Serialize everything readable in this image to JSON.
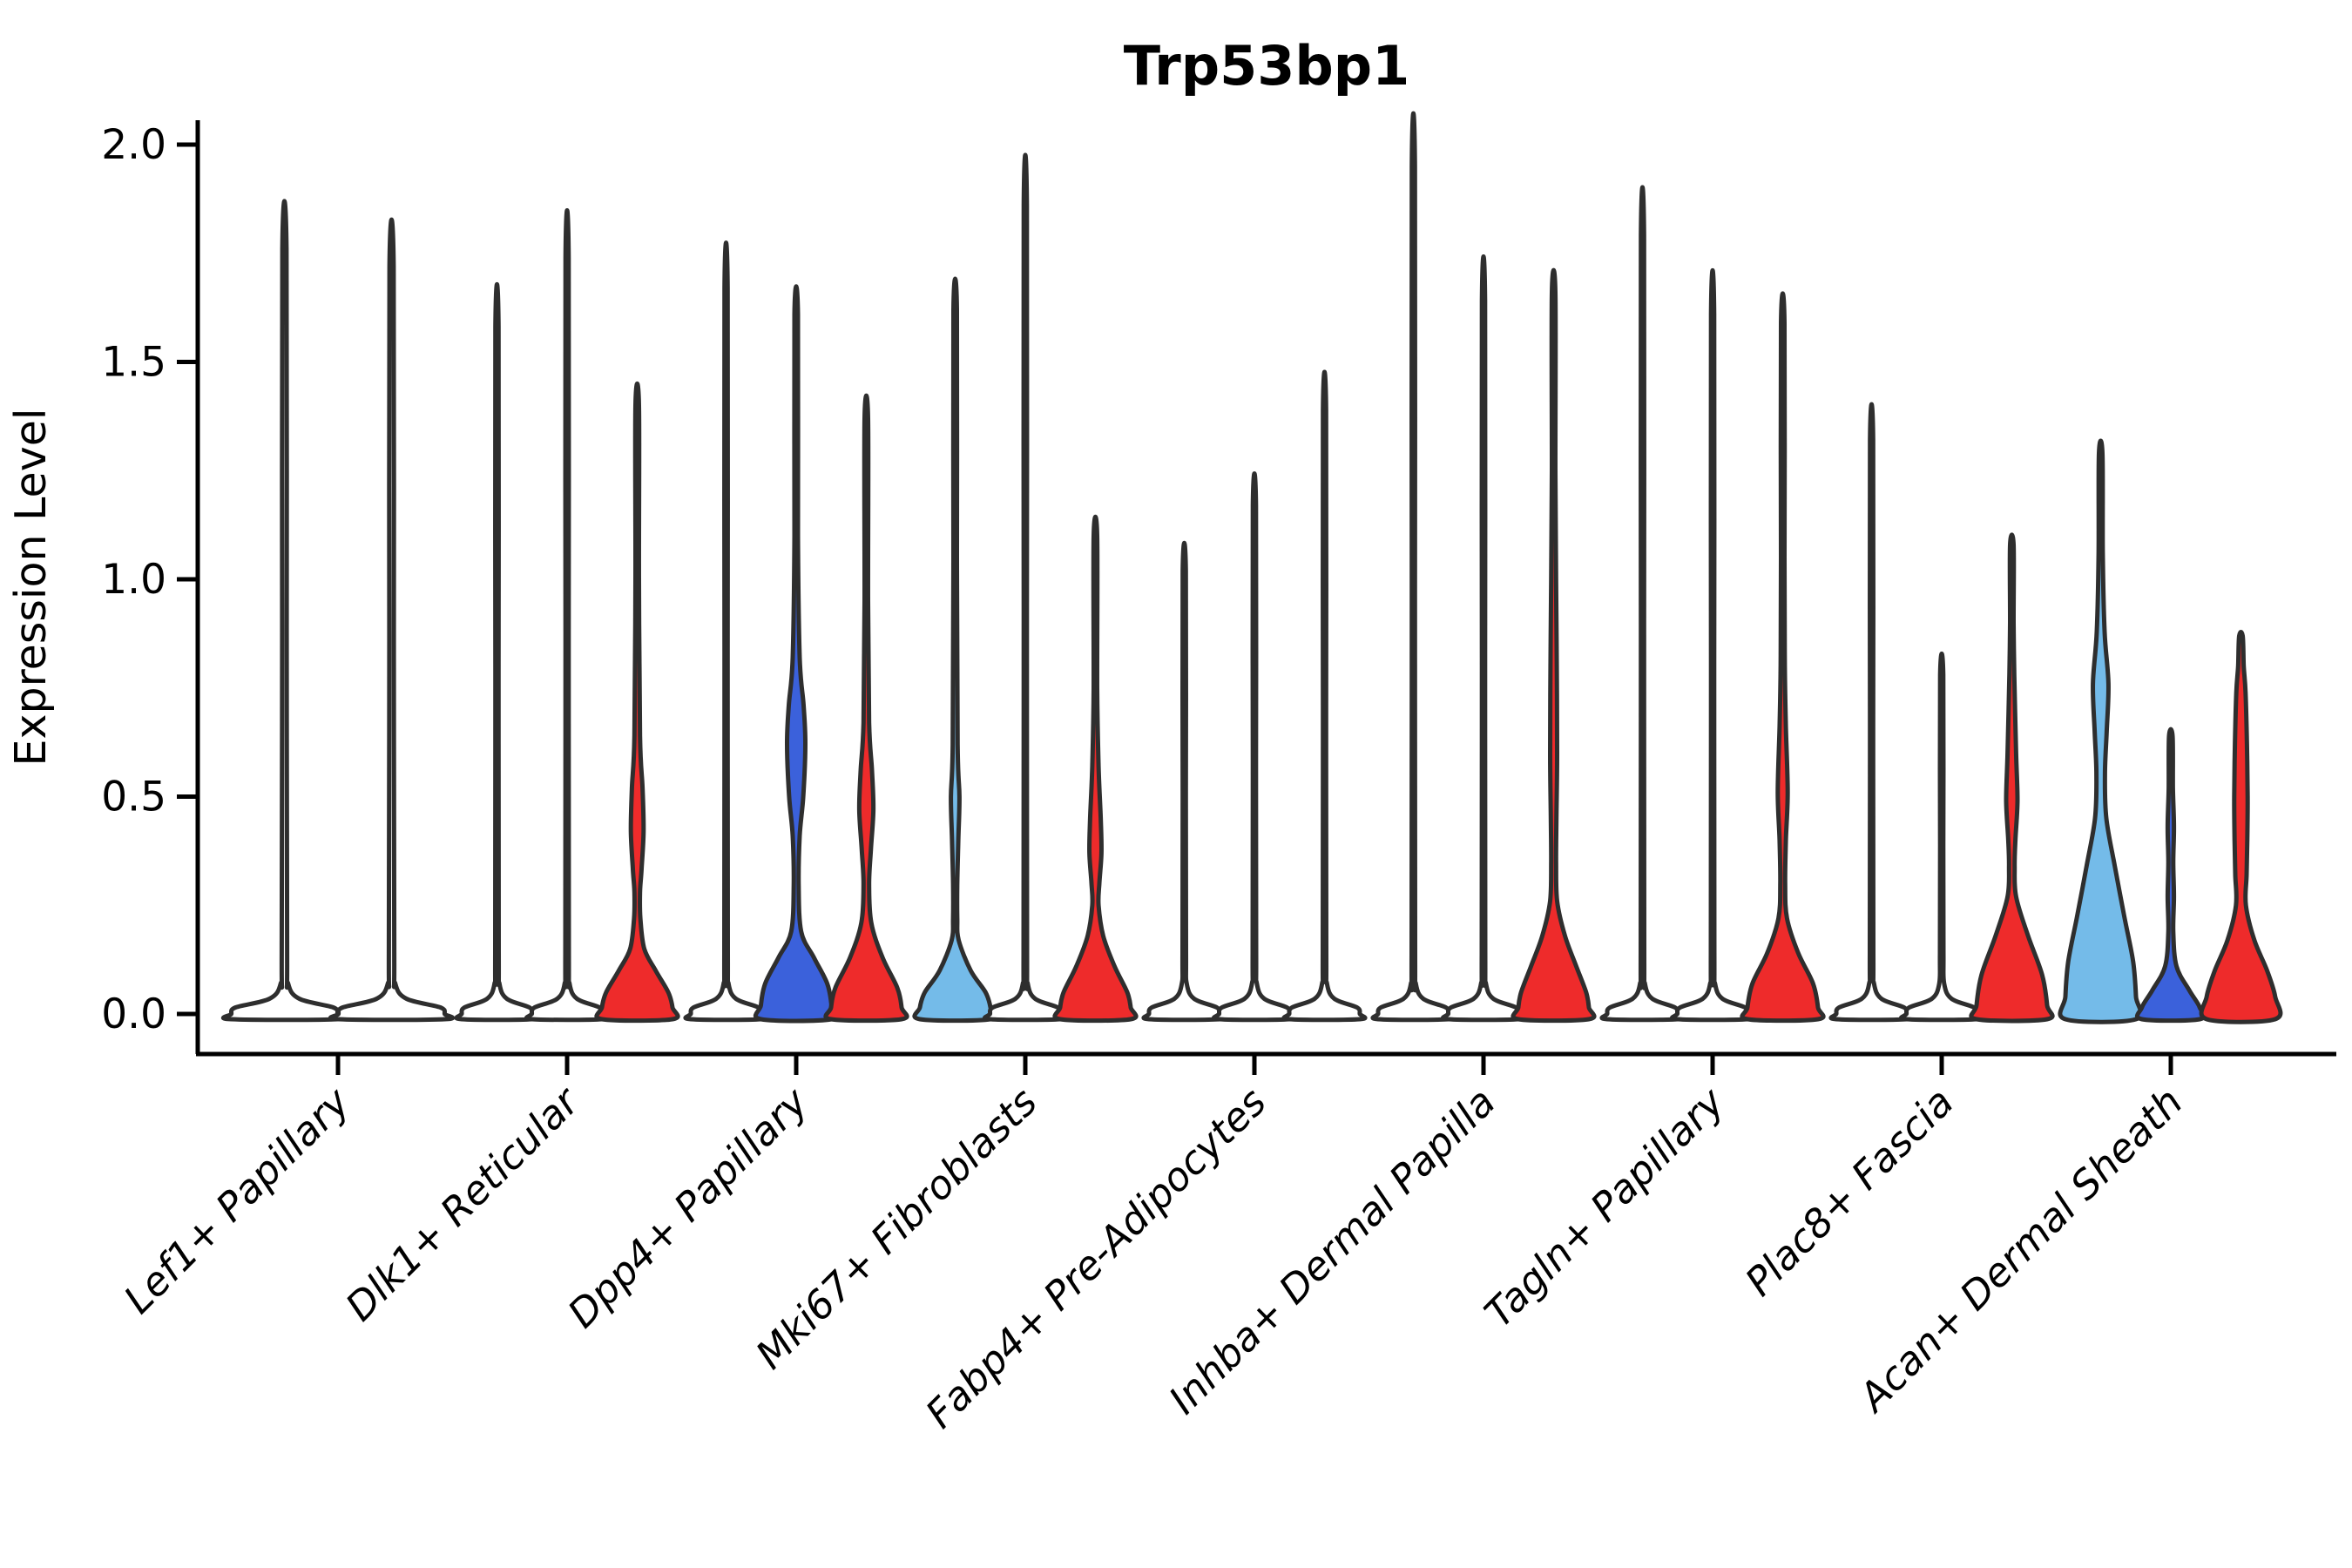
{
  "title": "Trp53bp1",
  "y_axis": {
    "label": "Expression Level",
    "tick_labels": [
      "0.0",
      "0.5",
      "1.0",
      "1.5",
      "2.0"
    ]
  },
  "x_axis": {
    "categories": [
      "Lef1+ Papillary",
      "Dlk1+ Reticular",
      "Dpp4+ Papillary",
      "Mki67+ Fibroblasts",
      "Fabp4+ Pre-Adipocytes",
      "Inhba+ Dermal Papilla",
      "Tagln+ Papillary",
      "Plac8+ Fascia",
      "Acan+ Dermal Sheath"
    ]
  },
  "colors": {
    "background": "#FFFFFF",
    "outline": "#2E2E2E",
    "text": "#000000",
    "red": "#EE2B2B",
    "blue": "#3B61DB",
    "light_blue": "#74BBE9",
    "none": "#FFFFFF"
  },
  "chart_data": {
    "type": "violin",
    "title": "Trp53bp1",
    "xlabel": "",
    "ylabel": "Expression Level",
    "ylim": [
      -0.06,
      2.05
    ],
    "yticks": [
      0.0,
      0.5,
      1.0,
      1.5,
      2.0
    ],
    "grid": false,
    "legend": "none",
    "split_colors": {
      "light_blue": "#74BBE9",
      "blue": "#3B61DB",
      "red": "#EE2B2B",
      "uncolored": "#FFFFFF"
    },
    "categories": [
      "Lef1+ Papillary",
      "Dlk1+ Reticular",
      "Dpp4+ Papillary",
      "Mki67+ Fibroblasts",
      "Fabp4+ Pre-Adipocytes",
      "Inhba+ Dermal Papilla",
      "Tagln+ Papillary",
      "Plac8+ Fascia",
      "Acan+ Dermal Sheath"
    ],
    "groups": [
      {
        "category": "Lef1+ Papillary",
        "violins": [
          {
            "fill": "none",
            "max": 1.76,
            "shape": "flat_spike"
          },
          {
            "fill": "none",
            "max": 1.72,
            "shape": "flat_spike"
          }
        ]
      },
      {
        "category": "Dlk1+ Reticular",
        "violins": [
          {
            "fill": "none",
            "max": 1.58,
            "shape": "flat_spike"
          },
          {
            "fill": "none",
            "max": 1.74,
            "shape": "flat_spike"
          },
          {
            "fill": "red",
            "max": 1.4,
            "profile": [
              [
                1.4,
                0.05
              ],
              [
                1.0,
                0.05
              ],
              [
                0.64,
                0.08
              ],
              [
                0.52,
                0.15
              ],
              [
                0.42,
                0.18
              ],
              [
                0.33,
                0.12
              ],
              [
                0.28,
                0.08
              ],
              [
                0.22,
                0.09
              ],
              [
                0.15,
                0.2
              ],
              [
                0.1,
                0.52
              ],
              [
                0.05,
                0.88
              ],
              [
                0.015,
                1.0
              ],
              [
                -0.012,
                1.0
              ]
            ]
          }
        ]
      },
      {
        "category": "Dpp4+ Papillary",
        "violins": [
          {
            "fill": "none",
            "max": 1.67,
            "shape": "flat_spike"
          },
          {
            "fill": "blue",
            "max": 1.61,
            "profile": [
              [
                1.61,
                0.05
              ],
              [
                1.1,
                0.05
              ],
              [
                0.82,
                0.1
              ],
              [
                0.71,
                0.21
              ],
              [
                0.62,
                0.26
              ],
              [
                0.5,
                0.2
              ],
              [
                0.41,
                0.1
              ],
              [
                0.3,
                0.07
              ],
              [
                0.19,
                0.14
              ],
              [
                0.13,
                0.5
              ],
              [
                0.07,
                0.88
              ],
              [
                0.02,
                1.0
              ],
              [
                -0.012,
                1.0
              ]
            ]
          },
          {
            "fill": "red",
            "max": 1.37,
            "profile": [
              [
                1.37,
                0.05
              ],
              [
                0.95,
                0.05
              ],
              [
                0.67,
                0.08
              ],
              [
                0.56,
                0.16
              ],
              [
                0.47,
                0.2
              ],
              [
                0.38,
                0.13
              ],
              [
                0.3,
                0.08
              ],
              [
                0.21,
                0.14
              ],
              [
                0.13,
                0.46
              ],
              [
                0.06,
                0.88
              ],
              [
                0.015,
                1.0
              ],
              [
                -0.012,
                1.0
              ]
            ]
          }
        ]
      },
      {
        "category": "Mki67+ Fibroblasts",
        "violins": [
          {
            "fill": "light_blue",
            "max": 1.62,
            "profile": [
              [
                1.62,
                0.05
              ],
              [
                1.05,
                0.05
              ],
              [
                0.62,
                0.07
              ],
              [
                0.5,
                0.12
              ],
              [
                0.4,
                0.09
              ],
              [
                0.3,
                0.06
              ],
              [
                0.22,
                0.06
              ],
              [
                0.17,
                0.1
              ],
              [
                0.1,
                0.44
              ],
              [
                0.05,
                0.86
              ],
              [
                0.015,
                1.0
              ],
              [
                -0.012,
                1.0
              ]
            ]
          },
          {
            "fill": "none",
            "max": 1.86,
            "shape": "flat_spike"
          },
          {
            "fill": "red",
            "max": 1.1,
            "profile": [
              [
                1.1,
                0.05
              ],
              [
                0.75,
                0.05
              ],
              [
                0.57,
                0.09
              ],
              [
                0.45,
                0.15
              ],
              [
                0.37,
                0.17
              ],
              [
                0.3,
                0.11
              ],
              [
                0.25,
                0.09
              ],
              [
                0.18,
                0.22
              ],
              [
                0.11,
                0.54
              ],
              [
                0.05,
                0.9
              ],
              [
                0.015,
                1.0
              ],
              [
                -0.012,
                1.0
              ]
            ]
          }
        ]
      },
      {
        "category": "Fabp4+ Pre-Adipocytes",
        "violins": [
          {
            "fill": "none",
            "max": 1.02,
            "shape": "flat_spike"
          },
          {
            "fill": "none",
            "max": 1.17,
            "shape": "flat_spike"
          },
          {
            "fill": "none",
            "max": 1.39,
            "shape": "flat_spike"
          }
        ]
      },
      {
        "category": "Inhba+ Dermal Papilla",
        "violins": [
          {
            "fill": "none",
            "max": 1.95,
            "shape": "flat_spike"
          },
          {
            "fill": "none",
            "max": 1.64,
            "shape": "flat_spike"
          },
          {
            "fill": "red",
            "max": 1.66,
            "profile": [
              [
                1.66,
                0.05
              ],
              [
                1.25,
                0.05
              ],
              [
                1.0,
                0.07
              ],
              [
                0.8,
                0.09
              ],
              [
                0.6,
                0.1
              ],
              [
                0.45,
                0.08
              ],
              [
                0.35,
                0.07
              ],
              [
                0.26,
                0.1
              ],
              [
                0.18,
                0.32
              ],
              [
                0.11,
                0.64
              ],
              [
                0.05,
                0.92
              ],
              [
                0.015,
                1.0
              ],
              [
                -0.012,
                1.0
              ]
            ]
          }
        ]
      },
      {
        "category": "Tagln+ Papillary",
        "violins": [
          {
            "fill": "none",
            "max": 1.79,
            "shape": "flat_spike"
          },
          {
            "fill": "none",
            "max": 1.61,
            "shape": "flat_spike"
          },
          {
            "fill": "red",
            "max": 1.59,
            "profile": [
              [
                1.59,
                0.05
              ],
              [
                1.05,
                0.05
              ],
              [
                0.8,
                0.06
              ],
              [
                0.66,
                0.09
              ],
              [
                0.51,
                0.14
              ],
              [
                0.4,
                0.09
              ],
              [
                0.3,
                0.07
              ],
              [
                0.22,
                0.12
              ],
              [
                0.14,
                0.44
              ],
              [
                0.07,
                0.86
              ],
              [
                0.015,
                1.0
              ],
              [
                -0.012,
                1.0
              ]
            ]
          }
        ]
      },
      {
        "category": "Plac8+ Fascia",
        "violins": [
          {
            "fill": "none",
            "max": 1.32,
            "shape": "flat_spike"
          },
          {
            "fill": "none",
            "max": 0.78,
            "shape": "flat_spike"
          },
          {
            "fill": "red",
            "max": 1.08,
            "profile": [
              [
                1.08,
                0.05
              ],
              [
                0.9,
                0.05
              ],
              [
                0.78,
                0.07
              ],
              [
                0.6,
                0.12
              ],
              [
                0.49,
                0.16
              ],
              [
                0.4,
                0.1
              ],
              [
                0.34,
                0.08
              ],
              [
                0.27,
                0.12
              ],
              [
                0.18,
                0.46
              ],
              [
                0.09,
                0.86
              ],
              [
                0.02,
                1.0
              ],
              [
                -0.012,
                1.0
              ]
            ]
          }
        ]
      },
      {
        "category": "Acan+ Dermal Sheath",
        "violins": [
          {
            "fill": "light_blue",
            "max": 1.29,
            "profile": [
              [
                1.29,
                0.05
              ],
              [
                1.06,
                0.06
              ],
              [
                0.88,
                0.11
              ],
              [
                0.76,
                0.22
              ],
              [
                0.65,
                0.17
              ],
              [
                0.55,
                0.12
              ],
              [
                0.45,
                0.16
              ],
              [
                0.34,
                0.4
              ],
              [
                0.22,
                0.68
              ],
              [
                0.12,
                0.92
              ],
              [
                0.04,
                1.0
              ],
              [
                -0.012,
                1.0
              ]
            ]
          },
          {
            "fill": "blue",
            "max": 0.64,
            "profile": [
              [
                0.64,
                0.05
              ],
              [
                0.52,
                0.06
              ],
              [
                0.43,
                0.09
              ],
              [
                0.35,
                0.07
              ],
              [
                0.27,
                0.09
              ],
              [
                0.19,
                0.07
              ],
              [
                0.11,
                0.16
              ],
              [
                0.055,
                0.52
              ],
              [
                0.015,
                0.82
              ],
              [
                -0.012,
                0.82
              ]
            ]
          },
          {
            "fill": "red",
            "max": 0.87,
            "profile": [
              [
                0.87,
                0.05
              ],
              [
                0.8,
                0.08
              ],
              [
                0.74,
                0.13
              ],
              [
                0.62,
                0.17
              ],
              [
                0.5,
                0.19
              ],
              [
                0.4,
                0.18
              ],
              [
                0.32,
                0.16
              ],
              [
                0.25,
                0.14
              ],
              [
                0.17,
                0.38
              ],
              [
                0.1,
                0.74
              ],
              [
                0.04,
                0.97
              ],
              [
                -0.012,
                0.97
              ]
            ]
          }
        ]
      }
    ]
  }
}
